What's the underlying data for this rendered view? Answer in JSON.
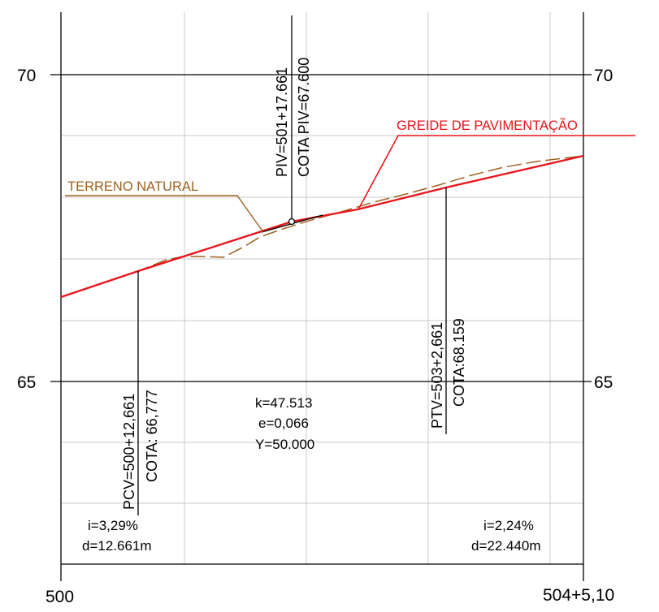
{
  "profile": {
    "station_axis": {
      "start_label": "500",
      "end_label": "504+5,10"
    },
    "elevation_axis": {
      "labels": [
        {
          "value": 70,
          "left": "70",
          "right": "70"
        },
        {
          "value": 65,
          "left": "65",
          "right": "65"
        }
      ]
    },
    "labels": {
      "greide": "GREIDE DE PAVIMENTAÇÃO",
      "terreno": "TERRENO NATURAL"
    },
    "piv": {
      "station": "PIV=501+17.661",
      "elevation": "COTA PIV=67.600"
    },
    "pcv": {
      "station": "PCV=500+12,661",
      "elevation": "COTA: 66,777"
    },
    "ptv": {
      "station": "PTV=503+2,661",
      "elevation": "COTA:68.159"
    },
    "curve": {
      "k": "k=47.513",
      "e": "e=0,066",
      "y": "Y=50.000"
    },
    "left_grade": {
      "i": "i=3,29%",
      "d": "d=12.661m"
    },
    "right_grade": {
      "i": "i=2,24%",
      "d": "d=22.440m"
    },
    "colors": {
      "greide": "#e8141b",
      "terreno": "#a0601e",
      "grid": "#c8c8c8",
      "frame": "#000000"
    }
  }
}
